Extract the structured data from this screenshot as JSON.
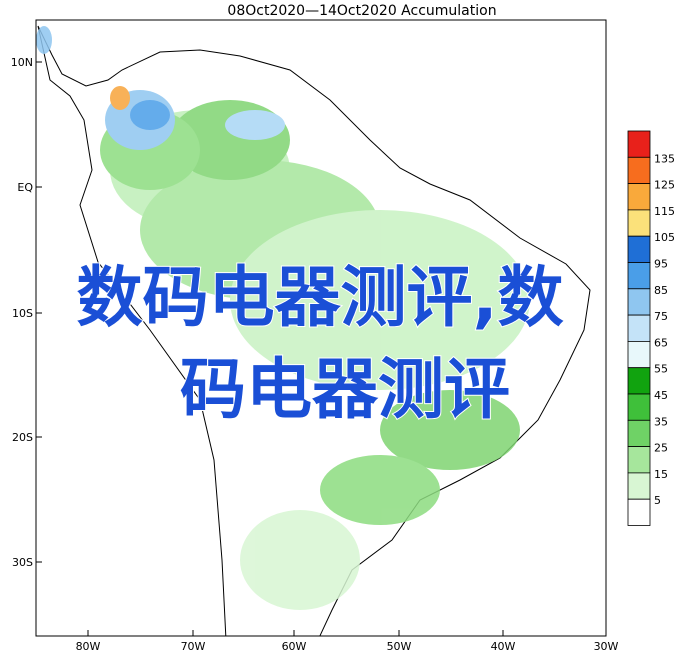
{
  "header": {
    "title": "08Oct2020—14Oct2020 Accumulation"
  },
  "latitudes": [
    "10N",
    "EQ",
    "10S",
    "20S",
    "30S"
  ],
  "longitudes": [
    "80W",
    "70W",
    "60W",
    "50W",
    "40W",
    "30W"
  ],
  "legend": {
    "labels": [
      "135",
      "125",
      "115",
      "105",
      "95",
      "85",
      "75",
      "65",
      "55",
      "45",
      "35",
      "25",
      "15",
      "5"
    ]
  },
  "overlay": {
    "lines": [
      "数码电器测评,数",
      "码电器测评"
    ]
  }
}
